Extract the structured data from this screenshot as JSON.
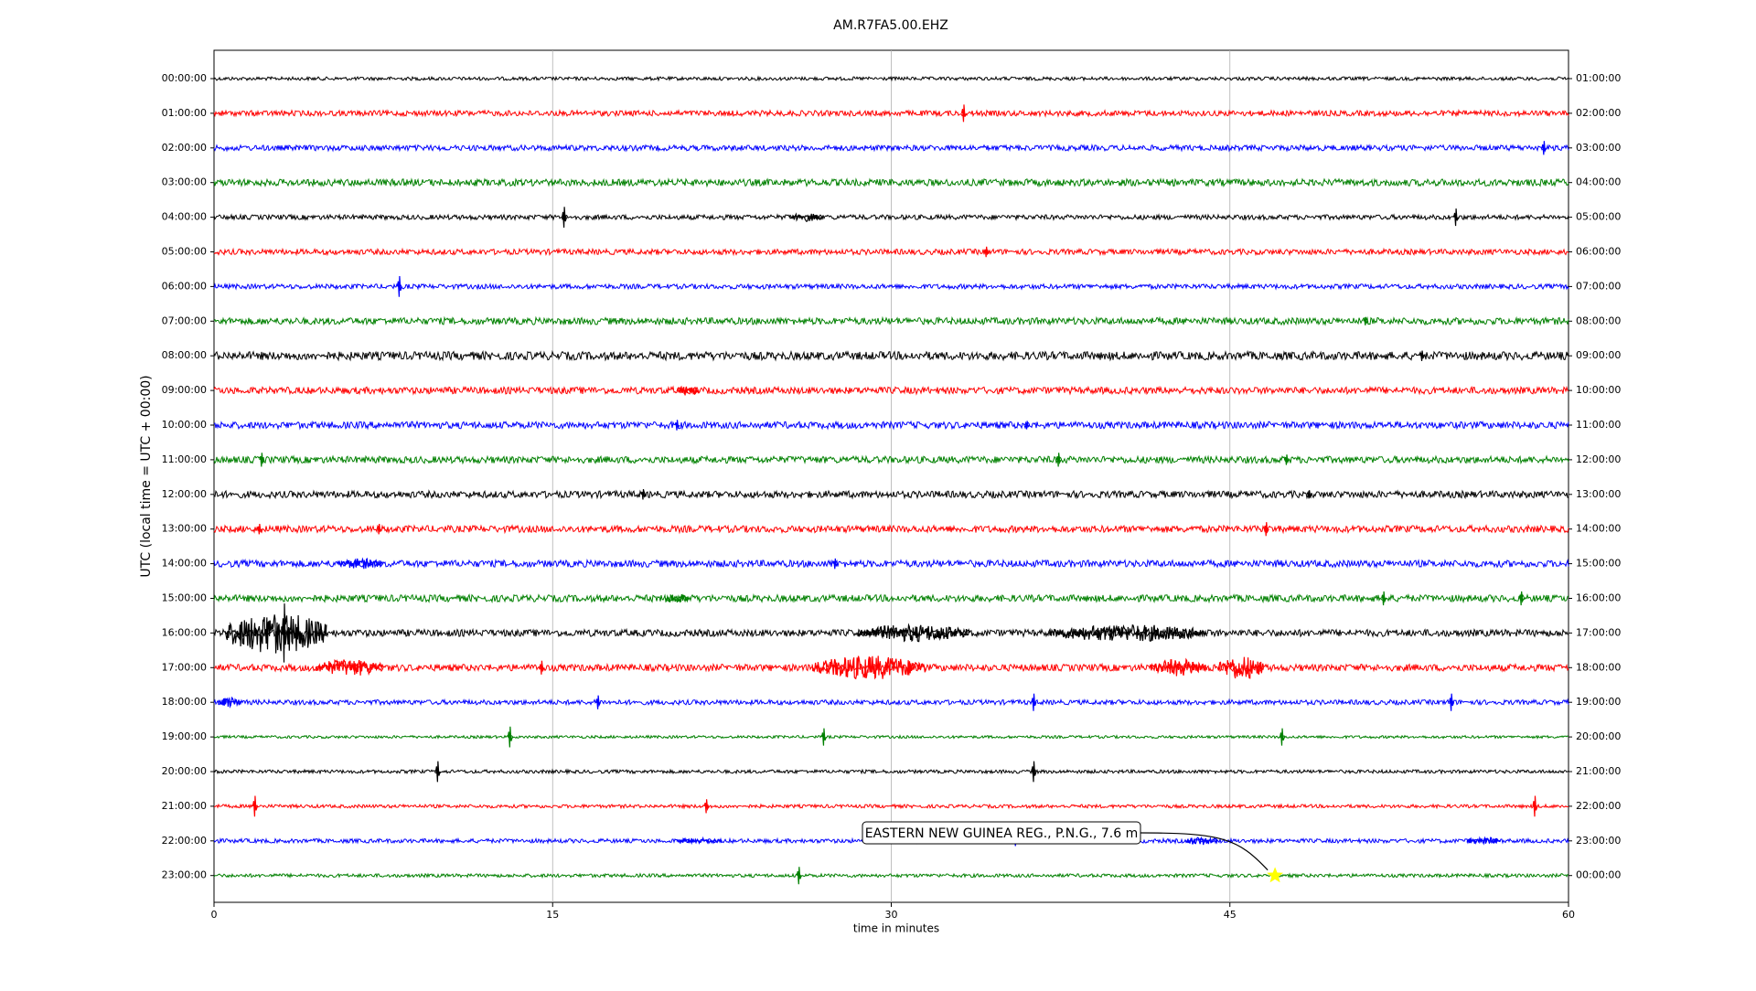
{
  "chart_data": {
    "type": "helicorder",
    "title": "AM.R7FA5.00.EHZ",
    "xlabel": "time in minutes",
    "ylabel": "UTC (local time = UTC + 00:00)",
    "xlim": [
      0,
      60
    ],
    "xticks": [
      0,
      15,
      30,
      45,
      60
    ],
    "grid": true,
    "series": [
      {
        "name": "00:00:00",
        "end": "01:00:00",
        "color": "#000000",
        "noise": 0.05,
        "events": {
          "x": [],
          "dur": [],
          "amp": []
        }
      },
      {
        "name": "01:00:00",
        "end": "02:00:00",
        "color": "#ff0000",
        "noise": 0.08,
        "events": {
          "x": [
            33.2
          ],
          "dur": [
            0
          ],
          "amp": [
            0.25
          ]
        }
      },
      {
        "name": "02:00:00",
        "end": "03:00:00",
        "color": "#0000ff",
        "noise": 0.08,
        "events": {
          "x": [
            58.9
          ],
          "dur": [
            0
          ],
          "amp": [
            0.2
          ]
        }
      },
      {
        "name": "03:00:00",
        "end": "04:00:00",
        "color": "#008000",
        "noise": 0.1,
        "events": {
          "x": [],
          "dur": [],
          "amp": []
        }
      },
      {
        "name": "04:00:00",
        "end": "05:00:00",
        "color": "#000000",
        "noise": 0.07,
        "events": {
          "x": [
            15.5,
            25.5,
            55
          ],
          "dur": [
            0,
            1.5,
            0
          ],
          "amp": [
            0.3,
            0.12,
            0.25
          ]
        }
      },
      {
        "name": "05:00:00",
        "end": "06:00:00",
        "color": "#ff0000",
        "noise": 0.08,
        "events": {
          "x": [
            34.2
          ],
          "dur": [
            0
          ],
          "amp": [
            0.15
          ]
        }
      },
      {
        "name": "06:00:00",
        "end": "07:00:00",
        "color": "#0000ff",
        "noise": 0.07,
        "events": {
          "x": [
            8.2
          ],
          "dur": [
            0
          ],
          "amp": [
            0.3
          ]
        }
      },
      {
        "name": "07:00:00",
        "end": "08:00:00",
        "color": "#008000",
        "noise": 0.1,
        "events": {
          "x": [
            51
          ],
          "dur": [
            0
          ],
          "amp": [
            0.12
          ]
        }
      },
      {
        "name": "08:00:00",
        "end": "09:00:00",
        "color": "#000000",
        "noise": 0.12,
        "events": {
          "x": [
            53.5
          ],
          "dur": [
            0
          ],
          "amp": [
            0.15
          ]
        }
      },
      {
        "name": "09:00:00",
        "end": "10:00:00",
        "color": "#ff0000",
        "noise": 0.1,
        "events": {
          "x": [
            20.5
          ],
          "dur": [
            1
          ],
          "amp": [
            0.15
          ]
        }
      },
      {
        "name": "10:00:00",
        "end": "11:00:00",
        "color": "#0000ff",
        "noise": 0.1,
        "events": {
          "x": [
            20.5,
            36
          ],
          "dur": [
            0,
            0
          ],
          "amp": [
            0.15,
            0.12
          ]
        }
      },
      {
        "name": "11:00:00",
        "end": "12:00:00",
        "color": "#008000",
        "noise": 0.1,
        "events": {
          "x": [
            2.1,
            37.4,
            47.5
          ],
          "dur": [
            0,
            0,
            0
          ],
          "amp": [
            0.2,
            0.2,
            0.15
          ]
        }
      },
      {
        "name": "12:00:00",
        "end": "13:00:00",
        "color": "#000000",
        "noise": 0.1,
        "events": {
          "x": [
            19,
            48.5
          ],
          "dur": [
            0,
            0
          ],
          "amp": [
            0.15,
            0.12
          ]
        }
      },
      {
        "name": "13:00:00",
        "end": "14:00:00",
        "color": "#ff0000",
        "noise": 0.1,
        "events": {
          "x": [
            2,
            7.3,
            46.6
          ],
          "dur": [
            0,
            0,
            0
          ],
          "amp": [
            0.15,
            0.15,
            0.2
          ]
        }
      },
      {
        "name": "14:00:00",
        "end": "15:00:00",
        "color": "#0000ff",
        "noise": 0.1,
        "events": {
          "x": [
            5.5,
            27.5
          ],
          "dur": [
            2,
            0
          ],
          "amp": [
            0.15,
            0.15
          ]
        }
      },
      {
        "name": "15:00:00",
        "end": "16:00:00",
        "color": "#008000",
        "noise": 0.1,
        "events": {
          "x": [
            20,
            51.8,
            57.9
          ],
          "dur": [
            1,
            0,
            0
          ],
          "amp": [
            0.15,
            0.2,
            0.2
          ]
        }
      },
      {
        "name": "16:00:00",
        "end": "17:00:00",
        "color": "#000000",
        "noise": 0.1,
        "events": {
          "x": [
            0.5,
            3.1,
            28.5,
            37
          ],
          "dur": [
            4.5,
            0,
            5,
            7
          ],
          "amp": [
            0.6,
            0.85,
            0.25,
            0.25
          ]
        }
      },
      {
        "name": "17:00:00",
        "end": "18:00:00",
        "color": "#ff0000",
        "noise": 0.1,
        "events": {
          "x": [
            4.5,
            14.5,
            26.5,
            41.5,
            44.5
          ],
          "dur": [
            3,
            0,
            5,
            2.5,
            2
          ],
          "amp": [
            0.25,
            0.2,
            0.35,
            0.25,
            0.35
          ]
        }
      },
      {
        "name": "18:00:00",
        "end": "19:00:00",
        "color": "#0000ff",
        "noise": 0.07,
        "events": {
          "x": [
            0.2,
            17,
            36.3,
            54.8
          ],
          "dur": [
            1,
            0,
            0,
            0
          ],
          "amp": [
            0.15,
            0.2,
            0.25,
            0.25
          ]
        }
      },
      {
        "name": "19:00:00",
        "end": "20:00:00",
        "color": "#008000",
        "noise": 0.04,
        "events": {
          "x": [
            13.1,
            27,
            47.3
          ],
          "dur": [
            0,
            0,
            0
          ],
          "amp": [
            0.3,
            0.25,
            0.25
          ]
        }
      },
      {
        "name": "20:00:00",
        "end": "21:00:00",
        "color": "#000000",
        "noise": 0.05,
        "events": {
          "x": [
            9.9,
            36.3
          ],
          "dur": [
            0,
            0
          ],
          "amp": [
            0.3,
            0.3
          ]
        }
      },
      {
        "name": "21:00:00",
        "end": "22:00:00",
        "color": "#ff0000",
        "noise": 0.05,
        "events": {
          "x": [
            1.8,
            21.8,
            58.5
          ],
          "dur": [
            0,
            0,
            0
          ],
          "amp": [
            0.3,
            0.2,
            0.3
          ]
        }
      },
      {
        "name": "22:00:00",
        "end": "23:00:00",
        "color": "#0000ff",
        "noise": 0.06,
        "events": {
          "x": [
            20.5,
            35.5,
            43,
            55.5
          ],
          "dur": [
            2,
            0,
            1.5,
            1.5
          ],
          "amp": [
            0.08,
            0.15,
            0.12,
            0.12
          ]
        }
      },
      {
        "name": "23:00:00",
        "end": "00:00:00",
        "color": "#008000",
        "noise": 0.05,
        "events": {
          "x": [
            25.9
          ],
          "dur": [
            0
          ],
          "amp": [
            0.25
          ]
        }
      }
    ],
    "annotation": {
      "text": "EASTERN NEW GUINEA REG., P.N.G., 7.6 m",
      "x": 47,
      "row": 23,
      "color": "#ffff00"
    }
  }
}
